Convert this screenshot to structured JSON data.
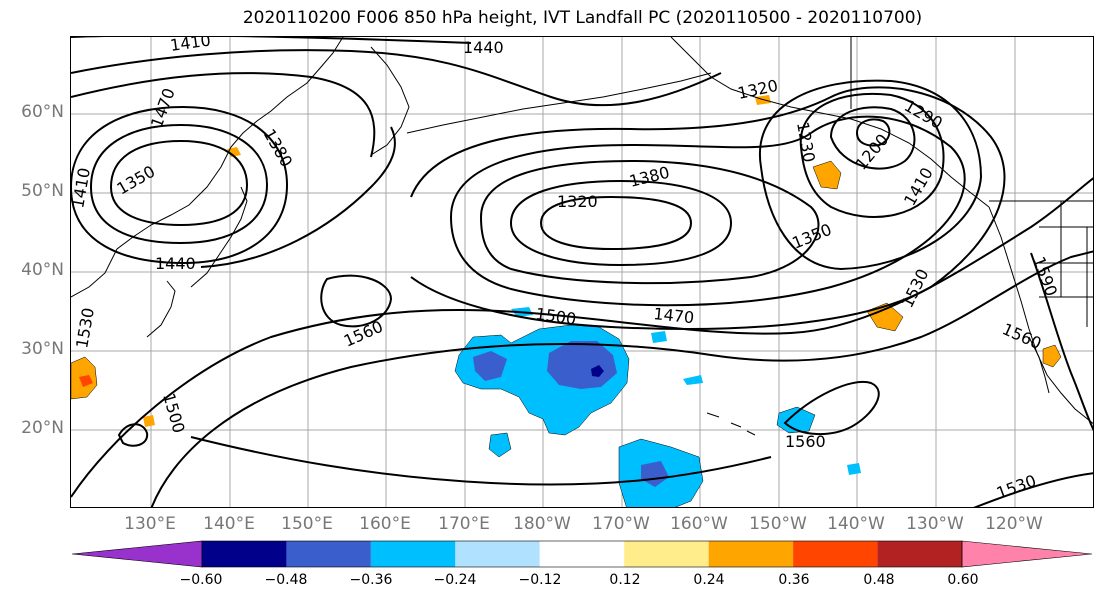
{
  "title": "2020110200 F006 850 hPa height, IVT Landfall PC (2020110500 - 2020110700)",
  "lat_labels": [
    "60°N",
    "50°N",
    "40°N",
    "30°N",
    "20°N"
  ],
  "lon_labels": [
    "130°E",
    "140°E",
    "150°E",
    "160°E",
    "170°E",
    "180°W",
    "170°W",
    "160°W",
    "150°W",
    "140°W",
    "130°W",
    "120°W"
  ],
  "contour_labels": [
    "1410",
    "1440",
    "1470",
    "1350",
    "1380",
    "1410",
    "1440",
    "1320",
    "1380",
    "1320",
    "1230",
    "1290",
    "1200",
    "1410",
    "1350",
    "1500",
    "1470",
    "1560",
    "1530",
    "1590",
    "1560",
    "1530",
    "1500",
    "1560",
    "1530"
  ],
  "colorbar": {
    "ticks": [
      "−0.60",
      "−0.48",
      "−0.36",
      "−0.24",
      "−0.12",
      "0.12",
      "0.24",
      "0.36",
      "0.48",
      "0.60"
    ],
    "colors": [
      "#9932cc",
      "#00008b",
      "#3a5fcd",
      "#00bfff",
      "#b0e2ff",
      "#ffffff",
      "#ffec8b",
      "#ffa500",
      "#ff4500",
      "#b22222",
      "#ff82ab"
    ]
  }
}
